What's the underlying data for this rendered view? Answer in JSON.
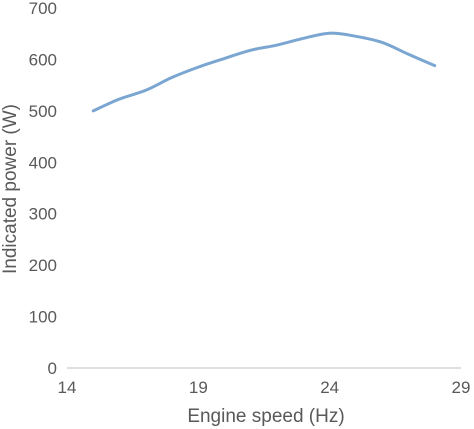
{
  "chart_data": {
    "type": "line",
    "xlabel": "Engine speed (Hz)",
    "ylabel": "Indicated power (W)",
    "xlim": [
      14,
      29
    ],
    "ylim": [
      0,
      700
    ],
    "x_ticks": [
      14,
      19,
      24,
      29
    ],
    "y_ticks": [
      0,
      100,
      200,
      300,
      400,
      500,
      600,
      700
    ],
    "grid": false,
    "legend": "none",
    "series": [
      {
        "color": "#7aa6d1",
        "x": [
          15,
          16,
          17,
          18,
          19,
          20,
          21,
          22,
          23,
          24,
          25,
          26,
          27,
          28
        ],
        "y": [
          500,
          523,
          540,
          565,
          585,
          602,
          618,
          628,
          641,
          651,
          645,
          633,
          610,
          588
        ]
      }
    ]
  }
}
